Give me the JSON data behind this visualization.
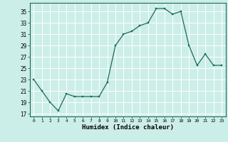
{
  "xlabel": "Humidex (Indice chaleur)",
  "ylabel": "",
  "bg_color": "#cceee8",
  "grid_color": "#ffffff",
  "line_color": "#1a6b5a",
  "marker_color": "#1a6b5a",
  "xlim": [
    -0.5,
    23.5
  ],
  "ylim": [
    16.5,
    36.5
  ],
  "yticks": [
    17,
    19,
    21,
    23,
    25,
    27,
    29,
    31,
    33,
    35
  ],
  "xticks": [
    0,
    1,
    2,
    3,
    4,
    5,
    6,
    7,
    8,
    9,
    10,
    11,
    12,
    13,
    14,
    15,
    16,
    17,
    18,
    19,
    20,
    21,
    22,
    23
  ],
  "hours": [
    0,
    1,
    2,
    3,
    4,
    5,
    6,
    7,
    8,
    9,
    10,
    11,
    12,
    13,
    14,
    15,
    16,
    17,
    18,
    19,
    20,
    21,
    22,
    23
  ],
  "values": [
    23.0,
    21.0,
    19.0,
    17.5,
    20.5,
    20.0,
    20.0,
    20.0,
    20.0,
    22.5,
    29.0,
    31.0,
    31.5,
    32.5,
    33.0,
    35.5,
    35.5,
    34.5,
    35.0,
    29.0,
    25.5,
    27.5,
    25.5,
    25.5
  ]
}
